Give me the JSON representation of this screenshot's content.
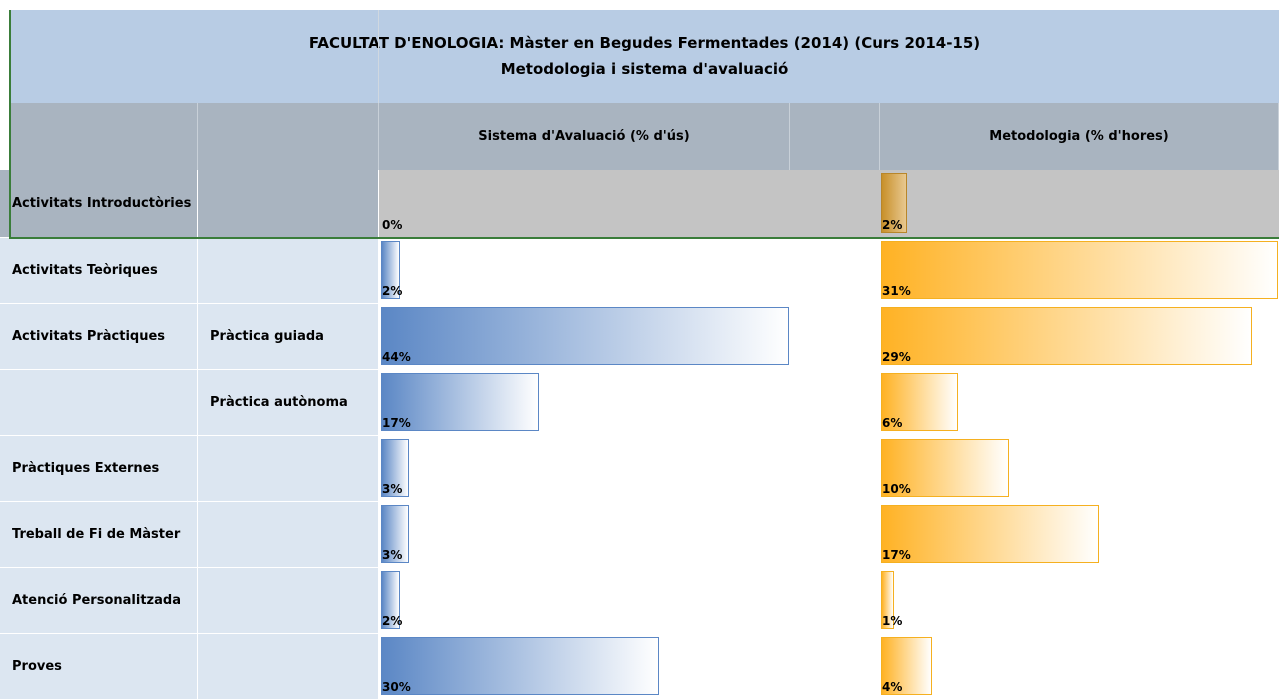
{
  "header": {
    "title": "FACULTAT D'ENOLOGIA: Màster en Begudes Fermentades (2014) (Curs 2014-15)",
    "subtitle": "Metodologia i sistema d'avaluació",
    "eval_header": "Sistema d'Avaluació (% d'ús)",
    "method_header": "Metodologia (% d'hores)"
  },
  "table": {
    "rows": [
      {
        "activity": "Activitats Introductòries",
        "eval": 0,
        "eval_label": "0%",
        "method": 2,
        "method_label": "2%"
      },
      {
        "activity": "Activitats Teòriques",
        "eval": 2,
        "eval_label": "2%",
        "method": 31,
        "method_label": "31%"
      },
      {
        "activity": "Activitats Pràctiques",
        "sub": "Pràctica guiada",
        "eval": 44,
        "eval_label": "44%",
        "method": 29,
        "method_label": "29%"
      },
      {
        "sub": "Pràctica autònoma",
        "eval": 17,
        "eval_label": "17%",
        "method": 6,
        "method_label": "6%"
      },
      {
        "activity": "Pràctiques Externes",
        "eval": 3,
        "eval_label": "3%",
        "method": 10,
        "method_label": "10%"
      },
      {
        "activity": "Treball de Fi de Màster",
        "eval": 3,
        "eval_label": "3%",
        "method": 17,
        "method_label": "17%"
      },
      {
        "activity": "Atenció Personalitzada",
        "eval": 2,
        "eval_label": "2%",
        "method": 1,
        "method_label": "1%"
      },
      {
        "activity": "Proves",
        "eval": 30,
        "eval_label": "30%",
        "method": 4,
        "method_label": "4%"
      }
    ]
  }
}
